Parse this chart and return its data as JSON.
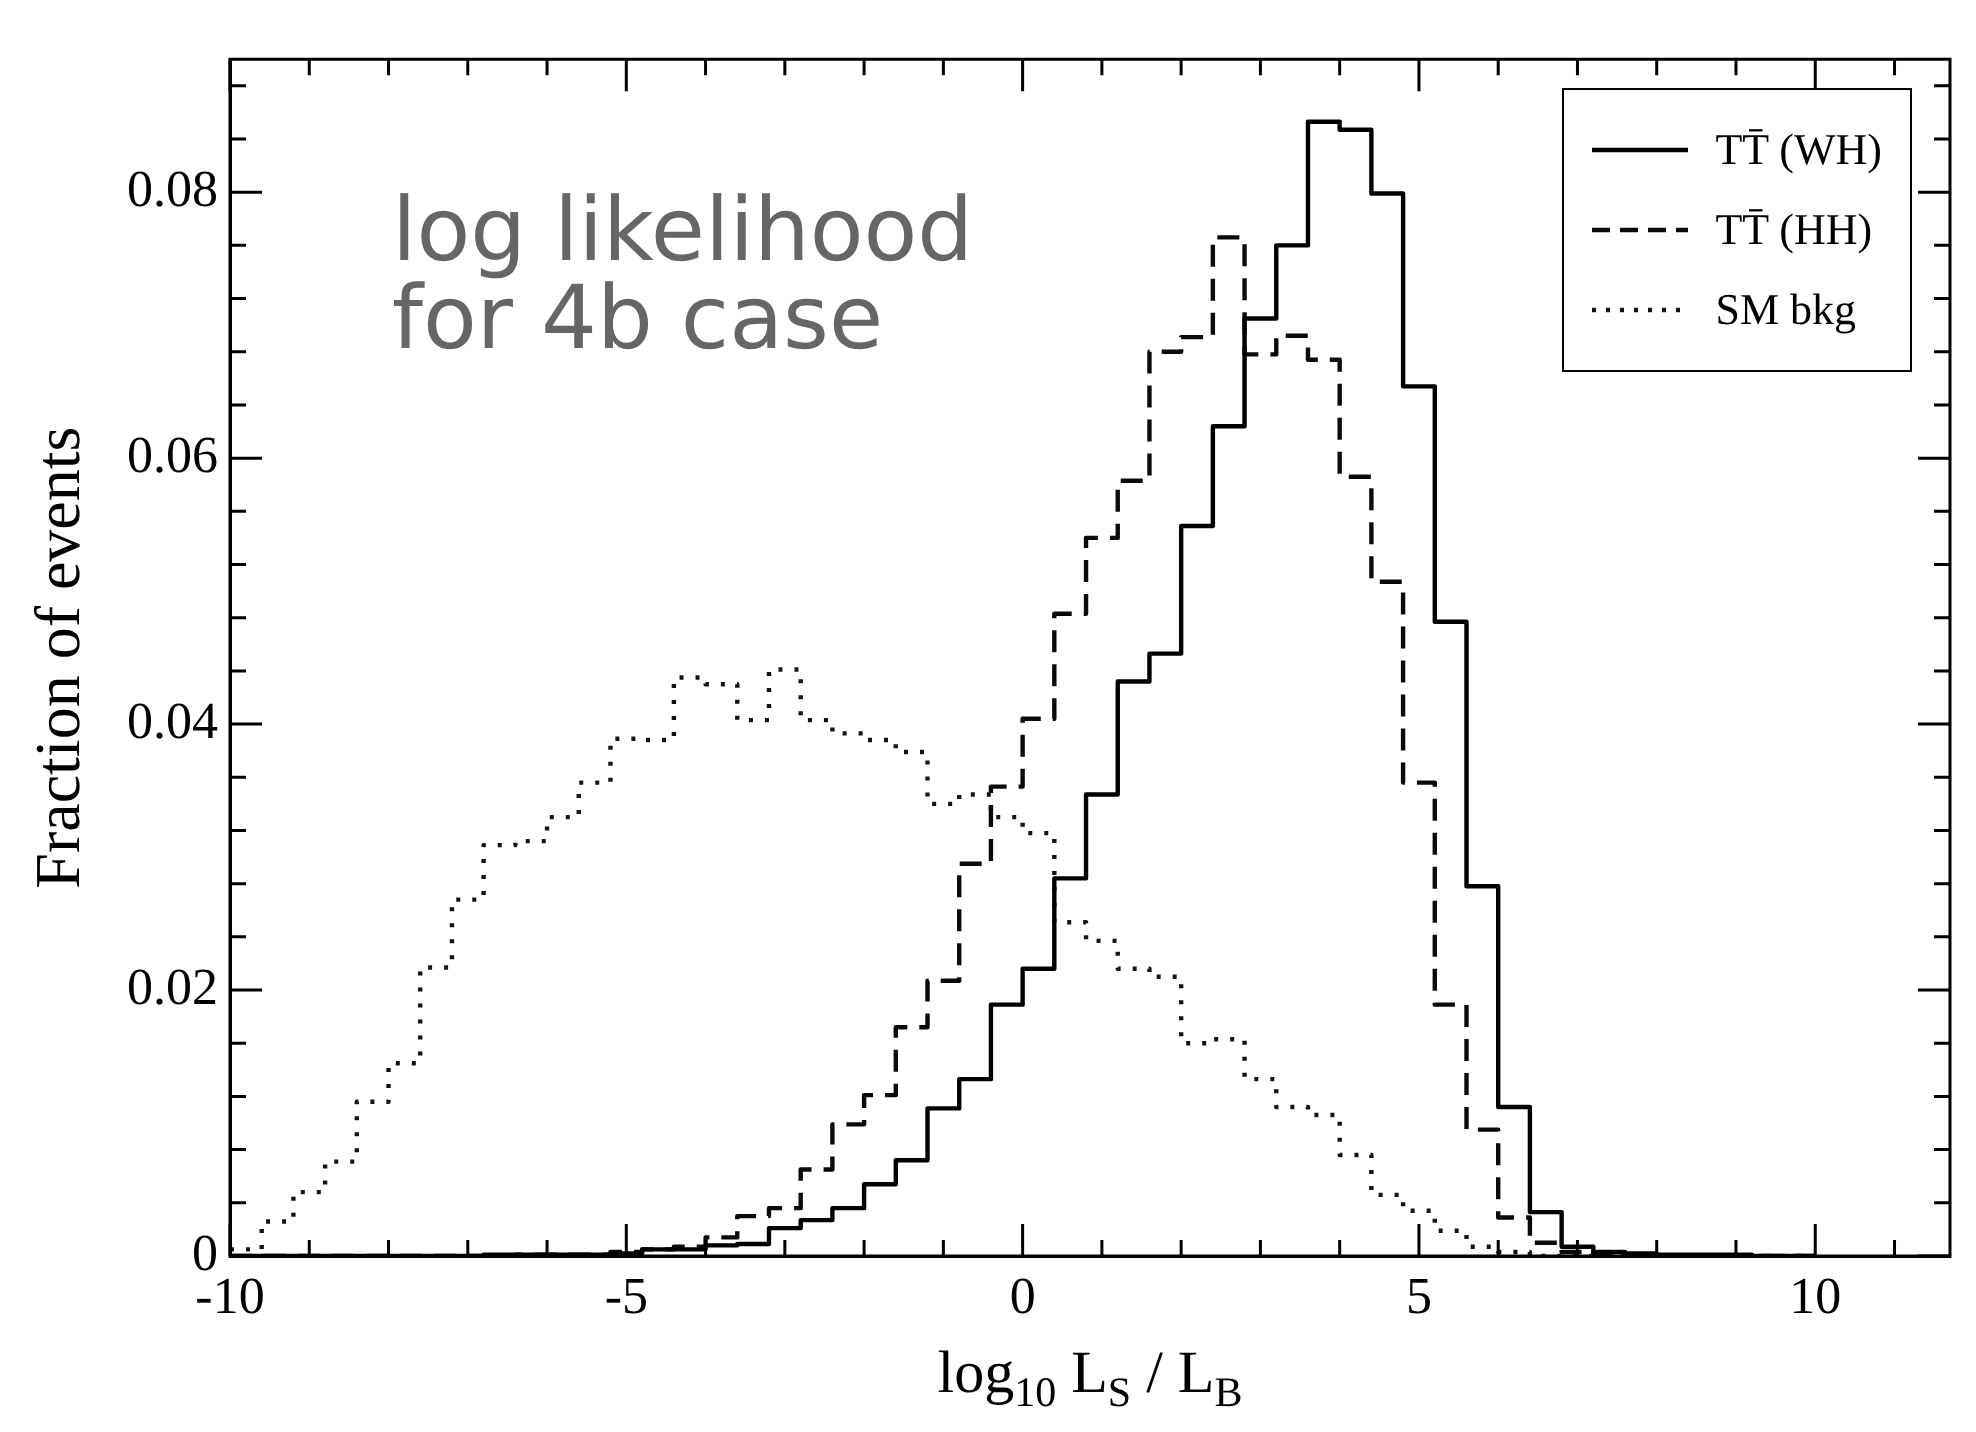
{
  "chart_data": {
    "type": "histogram",
    "xlabel": "log$_{10}$ L$_{S}$ / L$_{B}$",
    "ylabel": "Fraction of events",
    "annotations": [
      "log likelihood for 4b case"
    ],
    "bins": [
      -10,
      -9.6,
      -9.2,
      -8.8,
      -8.4,
      -8,
      -7.6,
      -7.2,
      -6.8,
      -6.4,
      -6,
      -5.6,
      -5.2,
      -4.8,
      -4.4,
      -4,
      -3.6,
      -3.2,
      -2.8,
      -2.4,
      -2,
      -1.6,
      -1.2,
      -0.8,
      -0.4,
      0,
      0.4,
      0.8,
      1.2,
      1.6,
      2,
      2.4,
      2.8,
      3.2,
      3.6,
      4,
      4.4,
      4.8,
      5.2,
      5.6,
      6,
      6.4,
      6.8,
      7.2,
      7.6,
      8,
      8.4,
      8.8,
      9.2,
      9.6,
      10
    ],
    "series": [
      {
        "name": "TT̄ (WH)",
        "color": "#000000",
        "line_style": "solid",
        "values": [
          0,
          0,
          0,
          0,
          0,
          0,
          0,
          0,
          0.0001,
          0.0001,
          0.0001,
          0.0001,
          0.0002,
          0.0005,
          0.0005,
          0.0008,
          0.0009,
          0.0021,
          0.0027,
          0.0036,
          0.0054,
          0.0072,
          0.0111,
          0.0133,
          0.0189,
          0.0216,
          0.0284,
          0.0347,
          0.0432,
          0.0453,
          0.0549,
          0.0624,
          0.0705,
          0.076,
          0.0853,
          0.0847,
          0.0799,
          0.0654,
          0.0477,
          0.0278,
          0.0112,
          0.0033,
          0.0007,
          0.0003,
          0.0002,
          0.0001,
          0.0001,
          0.0001,
          0,
          0
        ]
      },
      {
        "name": "TT̄ (HH)",
        "color": "#0a0a0a",
        "line_style": "dashed",
        "values": [
          0,
          0,
          0,
          0,
          0,
          0,
          0,
          0,
          0,
          0.0001,
          0.0001,
          0.0001,
          0.0003,
          0.0005,
          0.0007,
          0.0014,
          0.003,
          0.0036,
          0.0065,
          0.0099,
          0.0121,
          0.0172,
          0.0207,
          0.0295,
          0.0353,
          0.0404,
          0.0483,
          0.054,
          0.0583,
          0.068,
          0.0691,
          0.0766,
          0.0678,
          0.0692,
          0.0674,
          0.0586,
          0.0507,
          0.0356,
          0.0189,
          0.0095,
          0.0029,
          0.001,
          0.0003,
          0.0001,
          0,
          0,
          0,
          0,
          0,
          0
        ]
      },
      {
        "name": "SM bkg",
        "color": "#141414",
        "line_style": "dotted",
        "values": [
          0.0005,
          0.0026,
          0.0048,
          0.0071,
          0.0116,
          0.0145,
          0.0217,
          0.0268,
          0.0309,
          0.0312,
          0.033,
          0.0356,
          0.0389,
          0.0388,
          0.0435,
          0.043,
          0.0403,
          0.0441,
          0.0403,
          0.0393,
          0.0388,
          0.0379,
          0.034,
          0.0347,
          0.033,
          0.0318,
          0.0251,
          0.0237,
          0.0216,
          0.021,
          0.016,
          0.0163,
          0.0133,
          0.0112,
          0.0106,
          0.0076,
          0.0046,
          0.0034,
          0.0019,
          0.0007,
          0.0003,
          0,
          0,
          0,
          0,
          0,
          0,
          0,
          0,
          0
        ]
      }
    ],
    "xlim": [
      -10,
      11.7
    ],
    "xticks": [
      -10,
      {
        "value": -9,
        "label": null
      },
      {
        "value": -8,
        "label": null
      },
      {
        "value": -7,
        "label": null
      },
      {
        "value": -6,
        "label": null
      },
      -5,
      {
        "value": -4,
        "label": null
      },
      {
        "value": -3,
        "label": null
      },
      {
        "value": -2,
        "label": null
      },
      {
        "value": -1,
        "label": null
      },
      0,
      {
        "value": 1,
        "label": null
      },
      {
        "value": 2,
        "label": null
      },
      {
        "value": 3,
        "label": null
      },
      {
        "value": 4,
        "label": null
      },
      5,
      {
        "value": 6,
        "label": null
      },
      {
        "value": 7,
        "label": null
      },
      {
        "value": 8,
        "label": null
      },
      {
        "value": 9,
        "label": null
      },
      10,
      {
        "value": 11,
        "label": null
      }
    ],
    "ylim": [
      0,
      0.09
    ],
    "yticks": [
      0,
      {
        "value": 0.004,
        "label": null
      },
      {
        "value": 0.008,
        "label": null
      },
      {
        "value": 0.012,
        "label": null
      },
      {
        "value": 0.016,
        "label": null
      },
      0.02,
      {
        "value": 0.024,
        "label": null
      },
      {
        "value": 0.028,
        "label": null
      },
      {
        "value": 0.032,
        "label": null
      },
      {
        "value": 0.036,
        "label": null
      },
      0.04,
      {
        "value": 0.044,
        "label": null
      },
      {
        "value": 0.048,
        "label": null
      },
      {
        "value": 0.052,
        "label": null
      },
      {
        "value": 0.056,
        "label": null
      },
      0.06,
      {
        "value": 0.064,
        "label": null
      },
      {
        "value": 0.068,
        "label": null
      },
      {
        "value": 0.072,
        "label": null
      },
      {
        "value": 0.076,
        "label": null
      },
      0.08,
      {
        "value": 0.084,
        "label": null
      },
      {
        "value": 0.088,
        "label": null
      }
    ],
    "grid": false,
    "legend": "top right"
  }
}
